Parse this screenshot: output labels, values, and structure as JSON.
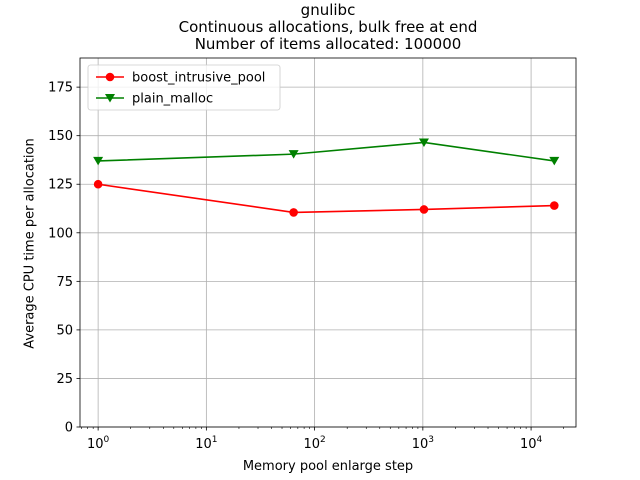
{
  "chart_data": {
    "type": "line",
    "title": [
      "gnulibc",
      "Continuous allocations, bulk free at end",
      "Number of items allocated: 100000"
    ],
    "xlabel": "Memory pool enlarge step",
    "ylabel": "Average CPU time per allocation",
    "xscale": "log",
    "xlim": [
      0.68,
      26000
    ],
    "ylim": [
      0,
      190
    ],
    "yticks": [
      0,
      25,
      50,
      75,
      100,
      125,
      150,
      175
    ],
    "xticks": [
      {
        "value": 1,
        "base": "10",
        "exp": "0"
      },
      {
        "value": 10,
        "base": "10",
        "exp": "1"
      },
      {
        "value": 100,
        "base": "10",
        "exp": "2"
      },
      {
        "value": 1000,
        "base": "10",
        "exp": "3"
      },
      {
        "value": 10000,
        "base": "10",
        "exp": "4"
      }
    ],
    "grid": true,
    "legend_position": "top-left",
    "x": [
      1,
      64,
      1024,
      16384
    ],
    "series": [
      {
        "name": "boost_intrusive_pool",
        "values": [
          125,
          110.5,
          112,
          114
        ],
        "color": "#ff0000",
        "marker": "circle"
      },
      {
        "name": "plain_malloc",
        "values": [
          137,
          140.5,
          146.5,
          137
        ],
        "color": "#008000",
        "marker": "triangle-down"
      }
    ]
  }
}
